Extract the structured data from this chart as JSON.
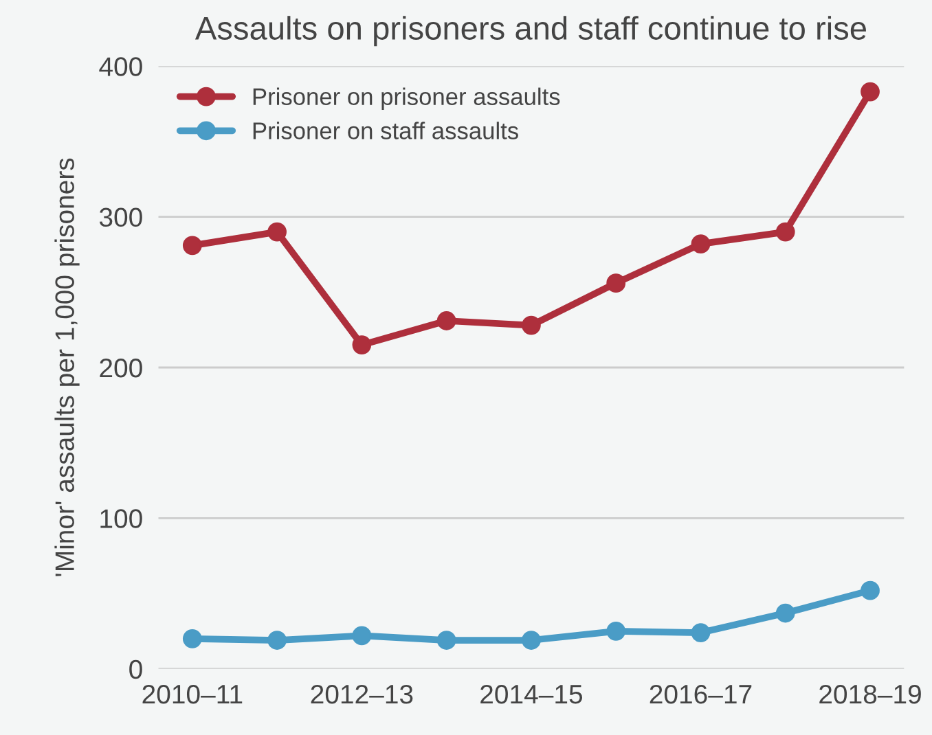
{
  "chart_data": {
    "type": "line",
    "title": "Assaults on prisoners and staff continue to rise",
    "ylabel": "'Minor' assaults per 1,000 prisoners",
    "categories": [
      "2010–11",
      null,
      "2012–13",
      null,
      "2014–15",
      null,
      "2016–17",
      null,
      "2018–19"
    ],
    "series": [
      {
        "name": "Prisoner on prisoner assaults",
        "color": "#ae2f3c",
        "values": [
          281,
          290,
          215,
          231,
          228,
          256,
          282,
          290,
          383
        ]
      },
      {
        "name": "Prisoner on staff assaults",
        "color": "#4a9cc6",
        "values": [
          20,
          19,
          22,
          19,
          19,
          25,
          24,
          37,
          52
        ]
      }
    ],
    "ylim": [
      0,
      400
    ],
    "yticks": [
      0,
      100,
      200,
      300,
      400
    ],
    "grid": "y",
    "legend": "top left",
    "marker": "circle",
    "line_style": "solid"
  }
}
